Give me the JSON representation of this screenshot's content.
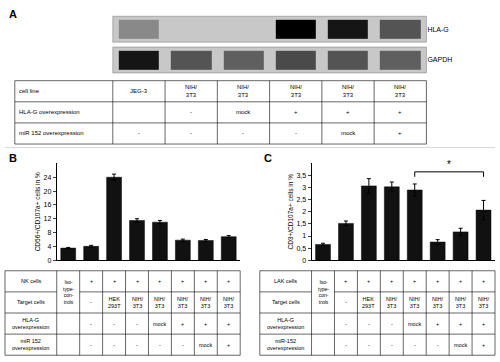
{
  "chart_data": [
    {
      "type": "heatmap",
      "title": "A",
      "rows": [
        "HLA-G",
        "GAPDH"
      ],
      "cells": [
        [
          0.3,
          0.0,
          0.0,
          0.95,
          0.85,
          0.55
        ],
        [
          0.85,
          0.55,
          0.5,
          0.6,
          0.55,
          0.5
        ]
      ],
      "color": "#c8c8c8",
      "tick_labels": "y",
      "table": {
        "row_labels": [
          "cell line",
          "HLA-G overexpression",
          "miR 152 overexpression"
        ],
        "columns": [
          [
            "JEG-3",
            null,
            "-"
          ],
          [
            "NIH/\n3T3",
            "-",
            "-"
          ],
          [
            "NIH/\n3T3",
            "mock",
            "-"
          ],
          [
            "NIH/\n3T3",
            "+",
            "-"
          ],
          [
            "NIH/\n3T3",
            "+",
            "mock"
          ],
          [
            "NIH/\n3T3",
            "+",
            "+"
          ]
        ]
      }
    },
    {
      "type": "bar",
      "title": "B",
      "categories": [
        null,
        null,
        null,
        null,
        null,
        null,
        null,
        null
      ],
      "values": [
        3.5,
        4.0,
        24.0,
        11.5,
        11.0,
        5.8,
        5.7,
        6.8
      ],
      "errors": [
        0.2,
        0.3,
        0.9,
        0.5,
        0.5,
        0.3,
        0.3,
        0.3
      ],
      "color": "#111111",
      "ylabel": "CD56+/CD107a+ cells in %",
      "ylim": [
        0,
        28
      ],
      "yticks": [
        0,
        4,
        8,
        12,
        16,
        20,
        24
      ],
      "grid": false,
      "tick_labels": "y",
      "table": {
        "row_labels": [
          "NK cells",
          "Target cells",
          "HLA-G\noverexpression",
          "miR 152\noverexpression"
        ],
        "span_label": "Iso-\ntype-\ncon-\ntrols",
        "rows": [
          [
            "+",
            "+",
            "+",
            "+",
            "+",
            "+",
            "+"
          ],
          [
            "-",
            "HEK\n293T",
            "NIH/\n3T3",
            "NIH/\n3T3",
            "NIH/\n3T3",
            "NIH/\n3T3",
            "NIH/\n3T3"
          ],
          [
            "-",
            "-",
            "-",
            "mock",
            "+",
            "+",
            "+"
          ],
          [
            "-",
            "-",
            "-",
            "-",
            "-",
            "mock",
            "+"
          ]
        ]
      }
    },
    {
      "type": "bar",
      "title": "C",
      "categories": [
        null,
        null,
        null,
        null,
        null,
        null,
        null,
        null
      ],
      "values": [
        0.65,
        1.52,
        3.07,
        3.03,
        2.9,
        0.75,
        1.17,
        2.07
      ],
      "errors": [
        0.05,
        0.1,
        0.3,
        0.2,
        0.25,
        0.1,
        0.15,
        0.4
      ],
      "color": "#111111",
      "ylabel": "CD3+/CD107a+ cells in %",
      "ylim": [
        0,
        4.0
      ],
      "yticks": [
        0,
        {
          "value": 0.5,
          "label": "0,5"
        },
        1,
        {
          "value": 1.5,
          "label": "1,5"
        },
        2,
        {
          "value": 2.5,
          "label": "2,5"
        },
        3,
        {
          "value": 3.5,
          "label": "3,5"
        }
      ],
      "grid": false,
      "tick_labels": "y",
      "annotations": [
        {
          "text": "*",
          "x": [
            4,
            7
          ],
          "y": 3.65
        }
      ],
      "table": {
        "row_labels": [
          "LAK cells",
          "Target cells",
          "HLA-G\noverexpression",
          "miR-152\noverexpression"
        ],
        "span_label": "Iso-\ntype-\ncon-\ntrols",
        "rows": [
          [
            "+",
            "+",
            "+",
            "+",
            "+",
            "+",
            "+"
          ],
          [
            "-",
            "HEK\n293T",
            "NIH/\n3T3",
            "NIH/\n3T3",
            "NIH/\n3T3",
            "NIH/\n3T3",
            "NIH/\n3T3"
          ],
          [
            "-",
            "-",
            "-",
            "mock",
            "+",
            "+",
            "+"
          ],
          [
            "-",
            "-",
            "-",
            "-",
            "-",
            "mock",
            "+"
          ]
        ]
      }
    }
  ]
}
